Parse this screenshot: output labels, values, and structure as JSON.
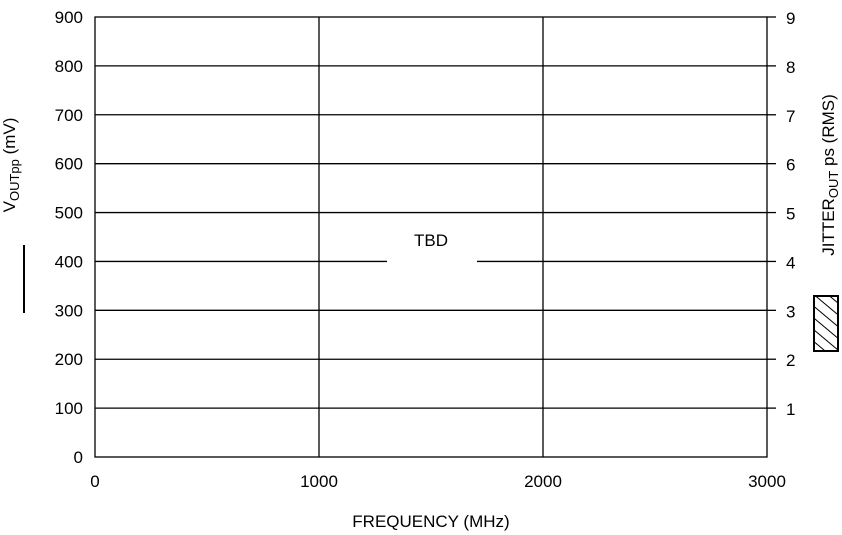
{
  "chart_data": {
    "type": "line",
    "title": "",
    "xlabel": "FREQUENCY (MHz)",
    "ylabel_left": {
      "main": "V",
      "sub": "OUTpp",
      "suffix": " (mV)"
    },
    "ylabel_right": {
      "main": "JITTER",
      "sub": "OUT",
      "suffix": " ps (RMS)"
    },
    "xlim": [
      0,
      3000
    ],
    "ylim_left": [
      0,
      900
    ],
    "ylim_right": [
      0,
      9
    ],
    "x_ticks": [
      "0",
      "1000",
      "2000",
      "3000"
    ],
    "x_tick_values": [
      0,
      1000,
      2000,
      3000
    ],
    "y_left_ticks": [
      "0",
      "100",
      "200",
      "300",
      "400",
      "500",
      "600",
      "700",
      "800",
      "900"
    ],
    "y_left_tick_values": [
      0,
      100,
      200,
      300,
      400,
      500,
      600,
      700,
      800,
      900
    ],
    "y_right_ticks": [
      "1",
      "2",
      "3",
      "4",
      "5",
      "6",
      "7",
      "8",
      "9"
    ],
    "y_right_tick_values": [
      1,
      2,
      3,
      4,
      5,
      6,
      7,
      8,
      9
    ],
    "grid": true,
    "annotation": "TBD",
    "legend": {
      "left": "solid-line",
      "right": "hatched-box"
    },
    "series": []
  }
}
